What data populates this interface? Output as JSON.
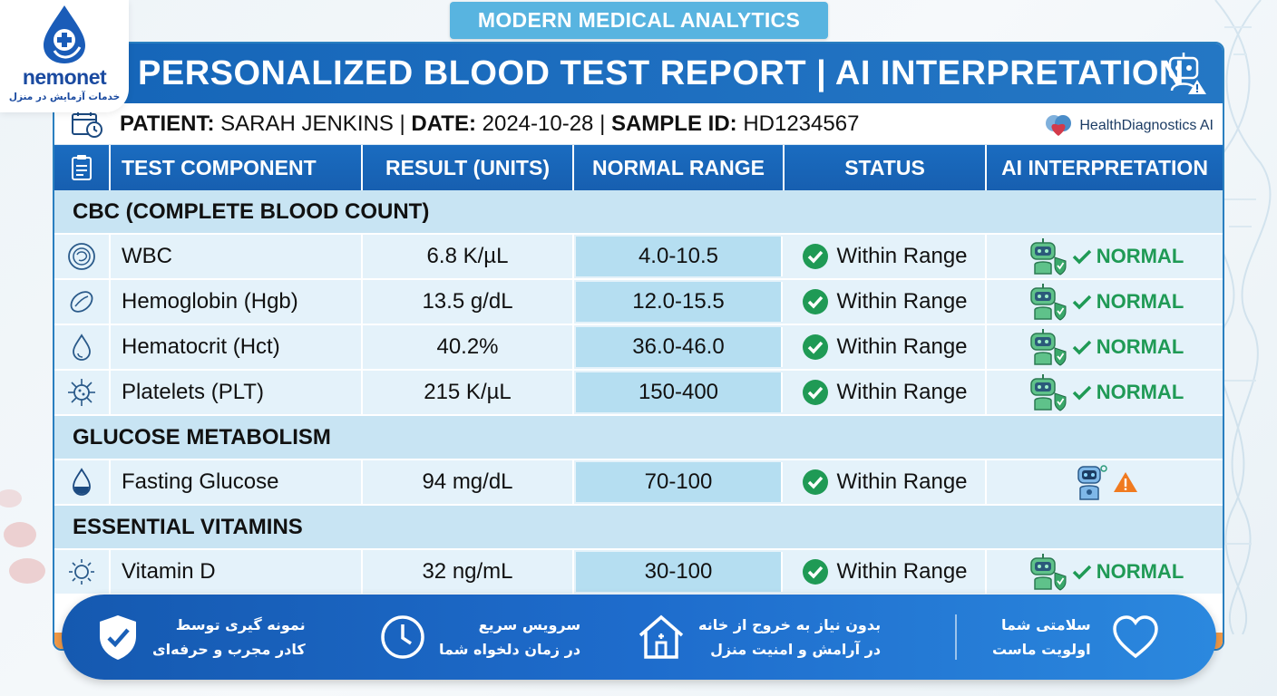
{
  "brand": {
    "name": "nemonet",
    "tagline": "خدمات آزمایش در منزل"
  },
  "top_badge": "MODERN MEDICAL ANALYTICS",
  "report_title": "PERSONALIZED BLOOD TEST REPORT | AI INTERPRETATION",
  "patient": {
    "label_patient": "PATIENT:",
    "name": "SARAH JENKINS",
    "label_date": "DATE:",
    "date": "2024-10-28",
    "label_sample": "SAMPLE ID:",
    "sample_id": "HD1234567",
    "sep": "|"
  },
  "provider": "HealthDiagnostics AI",
  "table": {
    "headers": [
      "TEST COMPONENT",
      "RESULT (UNITS)",
      "NORMAL RANGE",
      "STATUS",
      "AI INTERPRETATION"
    ],
    "sections": [
      {
        "title": "CBC (COMPLETE BLOOD COUNT)",
        "rows": [
          {
            "icon": "cell-icon",
            "component": "WBC",
            "result": "6.8 K/µL",
            "range": "4.0-10.5",
            "status": "Within Range",
            "ai": "NORMAL"
          },
          {
            "icon": "red-blood-cell-icon",
            "component": "Hemoglobin (Hgb)",
            "result": "13.5 g/dL",
            "range": "12.0-15.5",
            "status": "Within Range",
            "ai": "NORMAL"
          },
          {
            "icon": "droplet-icon",
            "component": "Hematocrit (Hct)",
            "result": "40.2%",
            "range": "36.0-46.0",
            "status": "Within Range",
            "ai": "NORMAL"
          },
          {
            "icon": "virus-icon",
            "component": "Platelets (PLT)",
            "result": "215 K/µL",
            "range": "150-400",
            "status": "Within Range",
            "ai": "NORMAL"
          }
        ]
      },
      {
        "title": "GLUCOSE METABOLISM",
        "rows": [
          {
            "icon": "glucose-drop-icon",
            "component": "Fasting Glucose",
            "result": "94 mg/dL",
            "range": "70-100",
            "status": "Within Range",
            "ai": "warning"
          }
        ]
      },
      {
        "title": "ESSENTIAL VITAMINS",
        "rows": [
          {
            "icon": "sun-icon",
            "component": "Vitamin D",
            "result": "32 ng/mL",
            "range": "30-100",
            "status": "Within Range",
            "ai": "NORMAL"
          }
        ]
      }
    ]
  },
  "footer": {
    "items": [
      {
        "icon": "shield-check-icon",
        "line1": "نمونه گیری توسط",
        "line2": "کادر مجرب و حرفه‌ای"
      },
      {
        "icon": "clock-icon",
        "line1": "سرویس سریع",
        "line2": "در زمان دلخواه شما"
      },
      {
        "icon": "home-icon",
        "line1": "بدون نیاز به خروج از خانه",
        "line2": "در آرامش و امنیت منزل"
      },
      {
        "icon": "heart-icon",
        "line1": "سلامتی شما",
        "line2": "اولویت ماست"
      }
    ]
  },
  "colors": {
    "primary": "#1565b8",
    "accent_light": "#58b4e0",
    "row_bg": "#e4f2fa",
    "section_bg": "#c8e4f3",
    "range_bg": "#b5def1",
    "ok_green": "#1f9a55",
    "warning_orange": "#f07a1f"
  }
}
